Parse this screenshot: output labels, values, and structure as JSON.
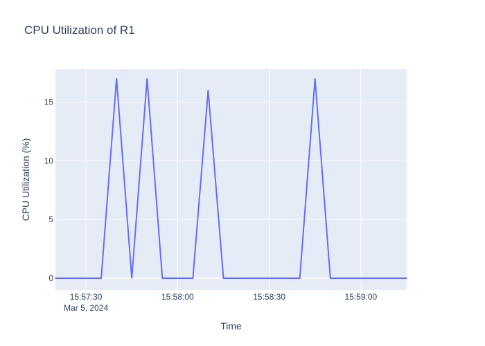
{
  "chart_data": {
    "type": "line",
    "title": "CPU Utilization of R1",
    "xlabel": "Time",
    "ylabel": "CPU Utilization (%)",
    "x_date_label": "Mar 5, 2024",
    "x_tick_values": [
      "15:57:30",
      "15:58:00",
      "15:58:30",
      "15:59:00"
    ],
    "y_tick_values": [
      0,
      5,
      10,
      15
    ],
    "xlim": [
      "15:57:20",
      "15:59:15"
    ],
    "ylim": [
      -1,
      17.8
    ],
    "grid": true,
    "colors": {
      "line": "#636efa",
      "plot_bg": "#e5ecf6",
      "grid": "#ffffff",
      "text": "#2a3f5f"
    },
    "series": [
      {
        "x": [
          "15:57:20",
          "15:57:35",
          "15:57:40",
          "15:57:45",
          "15:57:50",
          "15:57:55",
          "15:58:05",
          "15:58:10",
          "15:58:15",
          "15:58:40",
          "15:58:45",
          "15:58:50",
          "15:59:15"
        ],
        "values": [
          0,
          0,
          17,
          0,
          17,
          0,
          0,
          16,
          0,
          0,
          17,
          0,
          0
        ]
      }
    ]
  }
}
